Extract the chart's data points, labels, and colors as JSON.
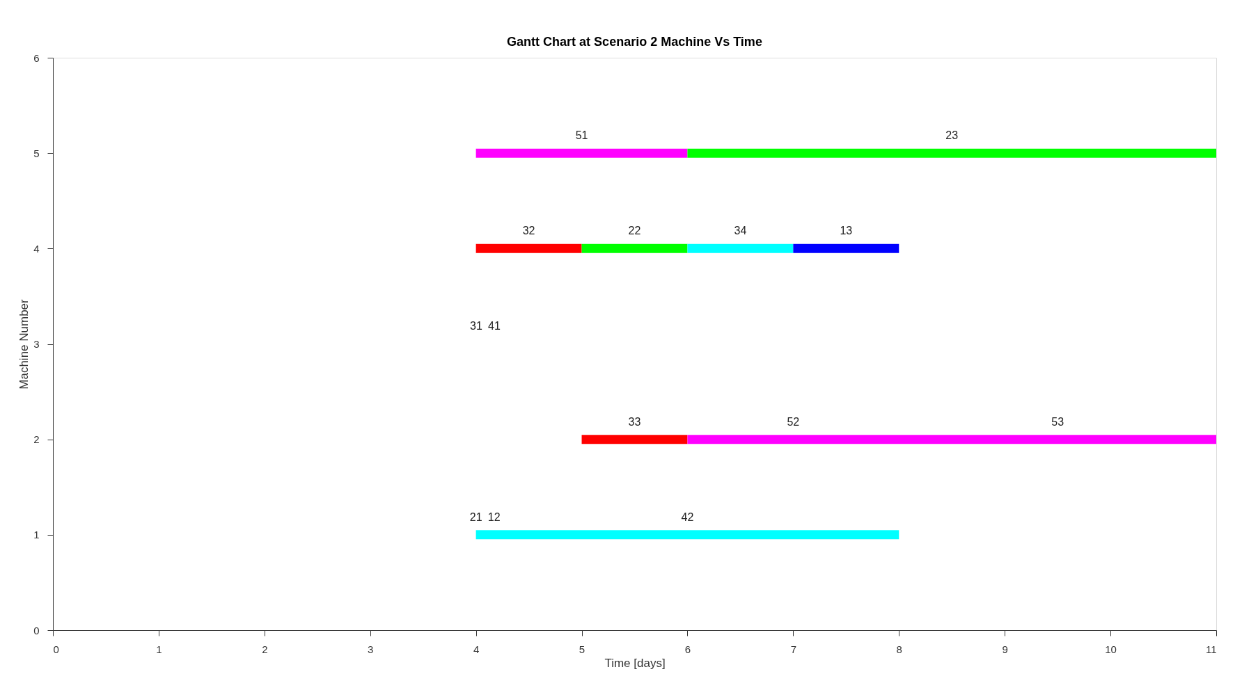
{
  "chart_data": {
    "type": "line",
    "title": "Gantt Chart at Scenario 2 Machine Vs Time",
    "xlabel": "Time [days]",
    "ylabel": "Machine Number",
    "xlim": [
      0,
      11
    ],
    "xticks": [
      0,
      1,
      2,
      3,
      4,
      5,
      6,
      7,
      8,
      9,
      10,
      11
    ],
    "ylim": [
      0,
      6
    ],
    "yticks": [
      0,
      1,
      2,
      3,
      4,
      5,
      6
    ],
    "grid": false,
    "marker": "none",
    "line_style": "solid",
    "series": [
      {
        "color": "#ff00ff",
        "x": [
          4,
          6
        ],
        "values": [
          5,
          5
        ]
      },
      {
        "color": "#00ff00",
        "x": [
          6,
          11
        ],
        "values": [
          5,
          5
        ]
      },
      {
        "color": "#ff0000",
        "x": [
          4,
          5
        ],
        "values": [
          4,
          4
        ]
      },
      {
        "color": "#00ff00",
        "x": [
          5,
          6
        ],
        "values": [
          4,
          4
        ]
      },
      {
        "color": "#00ffff",
        "x": [
          6,
          7
        ],
        "values": [
          4,
          4
        ]
      },
      {
        "color": "#0000ff",
        "x": [
          7,
          8
        ],
        "values": [
          4,
          4
        ]
      },
      {
        "color": "#ff0000",
        "x": [
          5,
          6
        ],
        "values": [
          2,
          2
        ]
      },
      {
        "color": "#ff00ff",
        "x": [
          6,
          8,
          11
        ],
        "values": [
          2,
          2,
          2
        ]
      },
      {
        "color": "#00ffff",
        "x": [
          4,
          8
        ],
        "values": [
          1,
          1
        ]
      }
    ],
    "annotations": [
      {
        "text": "51",
        "x": 5,
        "y": 5
      },
      {
        "text": "23",
        "x": 8.5,
        "y": 5
      },
      {
        "text": "32",
        "x": 4.5,
        "y": 4
      },
      {
        "text": "22",
        "x": 5.5,
        "y": 4
      },
      {
        "text": "34",
        "x": 6.5,
        "y": 4
      },
      {
        "text": "13",
        "x": 7.5,
        "y": 4
      },
      "31",
      "41",
      {
        "text": "33",
        "x": 5.5,
        "y": 2
      },
      {
        "text": "52",
        "x": 7,
        "y": 2
      },
      {
        "text": "53",
        "x": 9.5,
        "y": 2
      },
      {
        "text": "21",
        "x": 4,
        "y": 1
      },
      {
        "text": "12",
        "x": 4,
        "y": 1
      },
      {
        "text": "42",
        "x": 6,
        "y": 1
      }
    ]
  }
}
